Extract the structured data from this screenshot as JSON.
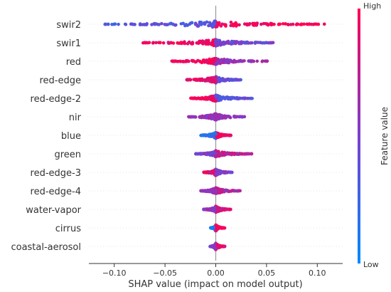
{
  "chart_data": {
    "type": "scatter",
    "subtype": "shap-beeswarm",
    "xlabel": "SHAP value (impact on model output)",
    "xlim": [
      -0.125,
      0.125
    ],
    "xticks": [
      {
        "value": -0.1,
        "label": "−0.10"
      },
      {
        "value": -0.05,
        "label": "−0.05"
      },
      {
        "value": 0.0,
        "label": "0.00"
      },
      {
        "value": 0.05,
        "label": "0.05"
      },
      {
        "value": 0.1,
        "label": "0.10"
      }
    ],
    "colorbar": {
      "title": "Feature value",
      "high_label": "High",
      "low_label": "Low",
      "high_color": "#ff0052",
      "low_color": "#008bfb"
    },
    "features": [
      {
        "name": "swir2",
        "min": -0.11,
        "max": 0.11,
        "neg_color": 0.35,
        "pos_color": 0.98
      },
      {
        "name": "swir1",
        "min": -0.073,
        "max": 0.057,
        "neg_color": 0.95,
        "pos_color": 0.45
      },
      {
        "name": "red",
        "min": -0.045,
        "max": 0.052,
        "neg_color": 0.95,
        "pos_color": 0.6
      },
      {
        "name": "red-edge",
        "min": -0.03,
        "max": 0.025,
        "neg_color": 0.9,
        "pos_color": 0.4
      },
      {
        "name": "red-edge-2",
        "min": -0.025,
        "max": 0.036,
        "neg_color": 0.95,
        "pos_color": 0.4
      },
      {
        "name": "nir",
        "min": -0.027,
        "max": 0.03,
        "neg_color": 0.6,
        "pos_color": 0.6
      },
      {
        "name": "blue",
        "min": -0.015,
        "max": 0.015,
        "neg_color": 0.2,
        "pos_color": 0.9
      },
      {
        "name": "green",
        "min": -0.02,
        "max": 0.036,
        "neg_color": 0.5,
        "pos_color": 0.75
      },
      {
        "name": "red-edge-3",
        "min": -0.012,
        "max": 0.016,
        "neg_color": 0.9,
        "pos_color": 0.5
      },
      {
        "name": "red-edge-4",
        "min": -0.015,
        "max": 0.024,
        "neg_color": 0.6,
        "pos_color": 0.7
      },
      {
        "name": "water-vapor",
        "min": -0.012,
        "max": 0.015,
        "neg_color": 0.6,
        "pos_color": 0.85
      },
      {
        "name": "cirrus",
        "min": -0.005,
        "max": 0.009,
        "neg_color": 0.15,
        "pos_color": 0.9
      },
      {
        "name": "coastal-aerosol",
        "min": -0.006,
        "max": 0.009,
        "neg_color": 0.5,
        "pos_color": 0.9
      }
    ]
  }
}
